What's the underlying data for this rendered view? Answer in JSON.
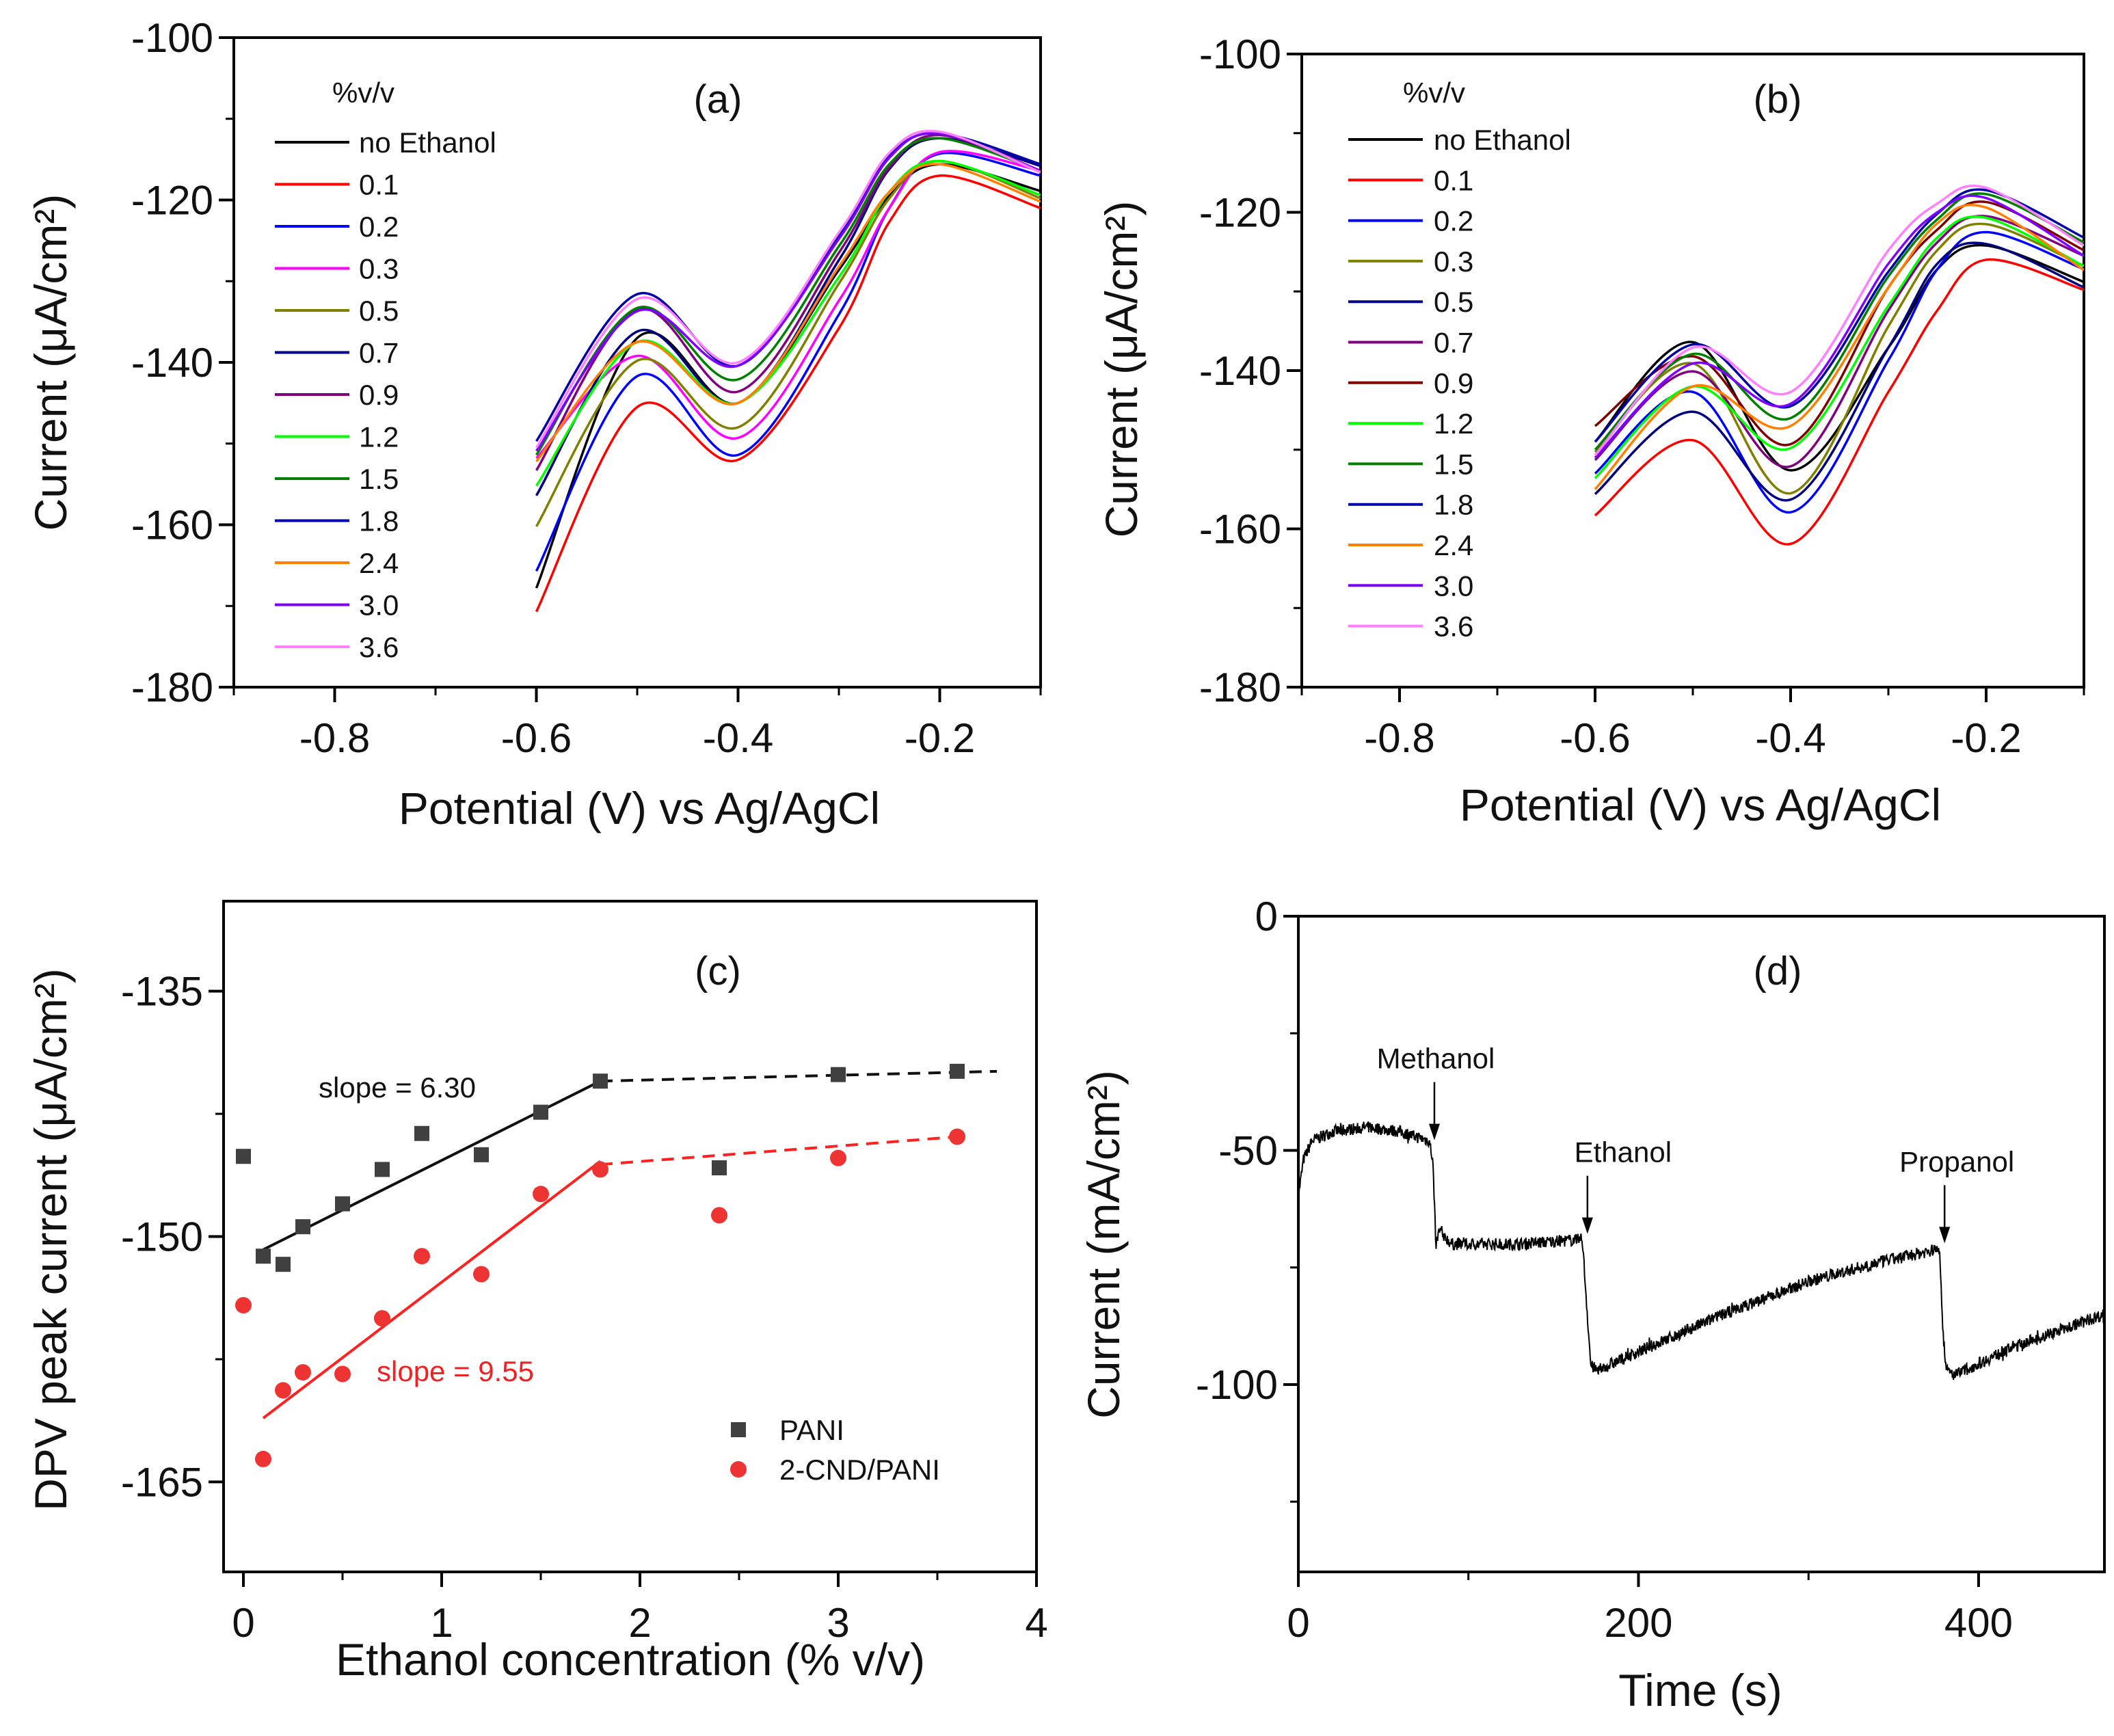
{
  "chart_data": [
    {
      "panel": "(a)",
      "type": "line",
      "xlabel": "Potential (V) vs Ag/AgCl",
      "ylabel": "Current (μA/cm²)",
      "xlim": [
        -0.9,
        -0.1
      ],
      "ylim": [
        -180,
        -100
      ],
      "xticks": [
        -0.8,
        -0.6,
        -0.4,
        -0.2
      ],
      "yticks": [
        -100,
        -120,
        -140,
        -160,
        -180
      ],
      "grid": false,
      "legend_title": "%v/v",
      "legend_position": "top-left",
      "x": [
        -0.6,
        -0.5,
        -0.4,
        -0.3,
        -0.25,
        -0.2,
        -0.1
      ],
      "series": [
        {
          "name": "no Ethanol",
          "color": "#000000",
          "values": [
            -167.8,
            -137.0,
            -145.0,
            -128.6,
            -119.5,
            -115.6,
            -118.9
          ]
        },
        {
          "name": "0.1",
          "color": "#ff0000",
          "values": [
            -170.7,
            -145.5,
            -152.0,
            -135.8,
            -122.7,
            -117.0,
            -121.0
          ]
        },
        {
          "name": "0.2",
          "color": "#0000ff",
          "values": [
            -165.7,
            -141.7,
            -151.4,
            -134.1,
            -121.0,
            -114.3,
            -117.0
          ]
        },
        {
          "name": "0.3",
          "color": "#ff00ff",
          "values": [
            -151.8,
            -139.2,
            -149.3,
            -132.4,
            -121.0,
            -114.1,
            -116.4
          ]
        },
        {
          "name": "0.5",
          "color": "#808000",
          "values": [
            -160.2,
            -139.8,
            -148.0,
            -130.3,
            -119.8,
            -115.2,
            -119.8
          ]
        },
        {
          "name": "0.7",
          "color": "#000080",
          "values": [
            -156.4,
            -136.2,
            -145.0,
            -127.4,
            -116.2,
            -112.4,
            -115.8
          ]
        },
        {
          "name": "0.9",
          "color": "#800080",
          "values": [
            -153.3,
            -133.5,
            -143.6,
            -126.5,
            -116.0,
            -112.0,
            -116.4
          ]
        },
        {
          "name": "1.2",
          "color": "#00ff00",
          "values": [
            -155.2,
            -137.5,
            -145.0,
            -129.5,
            -119.0,
            -115.2,
            -119.4
          ]
        },
        {
          "name": "1.5",
          "color": "#008000",
          "values": [
            -151.4,
            -133.3,
            -142.1,
            -125.7,
            -115.6,
            -112.4,
            -116.4
          ]
        },
        {
          "name": "1.8",
          "color": "#0000a8",
          "values": [
            -149.7,
            -131.6,
            -140.4,
            -124.4,
            -114.6,
            -111.8,
            -115.6
          ]
        },
        {
          "name": "2.4",
          "color": "#ff8000",
          "values": [
            -152.2,
            -137.5,
            -145.0,
            -128.2,
            -119.0,
            -115.6,
            -120.2
          ]
        },
        {
          "name": "3.0",
          "color": "#8000ff",
          "values": [
            -150.9,
            -133.7,
            -140.4,
            -124.8,
            -114.8,
            -111.8,
            -116.4
          ]
        },
        {
          "name": "3.6",
          "color": "#ff80ff",
          "values": [
            -150.5,
            -132.2,
            -140.0,
            -124.0,
            -114.2,
            -111.6,
            -116.6
          ]
        }
      ]
    },
    {
      "panel": "(b)",
      "type": "line",
      "xlabel": "Potential (V) vs Ag/AgCl",
      "ylabel": "Current (μA/cm²)",
      "xlim": [
        -0.9,
        -0.1
      ],
      "ylim": [
        -180,
        -100
      ],
      "xticks": [
        -0.8,
        -0.6,
        -0.4,
        -0.2
      ],
      "yticks": [
        -100,
        -120,
        -140,
        -160,
        -180
      ],
      "grid": false,
      "legend_title": "%v/v",
      "legend_position": "top-left",
      "x": [
        -0.6,
        -0.5,
        -0.4,
        -0.3,
        -0.25,
        -0.2,
        -0.1
      ],
      "series": [
        {
          "name": "no Ethanol",
          "color": "#000000",
          "values": [
            -149.0,
            -136.4,
            -152.6,
            -137.1,
            -127.2,
            -124.2,
            -128.8
          ]
        },
        {
          "name": "0.1",
          "color": "#ff0000",
          "values": [
            -158.3,
            -148.8,
            -161.9,
            -142.7,
            -132.4,
            -126.0,
            -129.8
          ]
        },
        {
          "name": "0.2",
          "color": "#0000ff",
          "values": [
            -153.0,
            -142.7,
            -157.9,
            -138.7,
            -127.2,
            -122.5,
            -127.2
          ]
        },
        {
          "name": "0.3",
          "color": "#808000",
          "values": [
            -150.3,
            -139.1,
            -155.5,
            -134.4,
            -124.8,
            -121.5,
            -126.8
          ]
        },
        {
          "name": "0.5",
          "color": "#000080",
          "values": [
            -155.6,
            -145.2,
            -156.3,
            -137.1,
            -126.5,
            -124.0,
            -129.5
          ]
        },
        {
          "name": "0.7",
          "color": "#800080",
          "values": [
            -151.3,
            -140.1,
            -152.1,
            -132.4,
            -123.8,
            -120.5,
            -125.5
          ]
        },
        {
          "name": "0.9",
          "color": "#800000",
          "values": [
            -147.0,
            -138.2,
            -149.3,
            -129.5,
            -122.2,
            -118.7,
            -124.8
          ]
        },
        {
          "name": "1.2",
          "color": "#00ff00",
          "values": [
            -153.6,
            -142.0,
            -149.8,
            -131.8,
            -123.2,
            -120.7,
            -126.8
          ]
        },
        {
          "name": "1.5",
          "color": "#008000",
          "values": [
            -150.0,
            -137.9,
            -146.0,
            -128.1,
            -120.9,
            -117.7,
            -123.8
          ]
        },
        {
          "name": "1.8",
          "color": "#0000a8",
          "values": [
            -149.0,
            -136.7,
            -144.5,
            -127.5,
            -120.2,
            -117.2,
            -123.2
          ]
        },
        {
          "name": "2.4",
          "color": "#ff8000",
          "values": [
            -155.0,
            -142.0,
            -147.0,
            -129.5,
            -121.4,
            -119.4,
            -127.3
          ]
        },
        {
          "name": "3.0",
          "color": "#8000ff",
          "values": [
            -151.0,
            -139.1,
            -144.2,
            -126.5,
            -120.0,
            -118.2,
            -125.5
          ]
        },
        {
          "name": "3.6",
          "color": "#ff80ff",
          "values": [
            -150.7,
            -137.1,
            -142.7,
            -124.8,
            -118.9,
            -116.9,
            -124.2
          ]
        }
      ]
    },
    {
      "panel": "(c)",
      "type": "scatter",
      "xlabel": "Ethanol concentration (% v/v)",
      "ylabel": "DPV peak current (μA/cm²)",
      "xlim": [
        -0.1,
        4.0
      ],
      "ylim": [
        -170.5,
        -129.5
      ],
      "xticks": [
        0,
        1,
        2,
        3,
        4
      ],
      "yticks": [
        -135,
        -150,
        -165
      ],
      "grid": false,
      "legend_position": "bottom-right",
      "x": [
        0,
        0.1,
        0.2,
        0.3,
        0.5,
        0.7,
        0.9,
        1.2,
        1.5,
        1.8,
        2.4,
        3.0,
        3.6
      ],
      "series": [
        {
          "name": "PANI",
          "color": "#404040",
          "marker": "square",
          "values": [
            -145.1,
            -151.2,
            -151.7,
            -149.4,
            -148.0,
            -145.9,
            -143.7,
            -145.0,
            -142.4,
            -140.5,
            -145.8,
            -140.1,
            -139.9
          ],
          "fit": {
            "label": "slope = 6.30",
            "solid": [
              [
                0.1,
                -150.8
              ],
              [
                1.8,
                -140.5
              ]
            ],
            "dashed": [
              [
                1.8,
                -140.5
              ],
              [
                3.8,
                -139.9
              ]
            ]
          }
        },
        {
          "name": "2-CND/PANI",
          "color": "#ee3333",
          "marker": "circle",
          "values": [
            -154.2,
            -163.6,
            -159.4,
            -158.3,
            -158.4,
            -155.0,
            -151.2,
            -152.3,
            -147.4,
            -145.9,
            -148.7,
            -145.2,
            -143.9
          ],
          "fit": {
            "label": "slope = 9.55",
            "solid": [
              [
                0.1,
                -161.1
              ],
              [
                1.8,
                -145.4
              ]
            ],
            "dashed": [
              [
                1.8,
                -145.6
              ],
              [
                3.6,
                -143.9
              ]
            ]
          }
        }
      ]
    },
    {
      "panel": "(d)",
      "type": "line",
      "xlabel": "Time (s)",
      "ylabel": "Current (mA/cm²)",
      "xlim": [
        0,
        474
      ],
      "ylim": [
        -140,
        0
      ],
      "xticks": [
        0,
        200,
        400
      ],
      "yticks": [
        0,
        -50,
        -100
      ],
      "grid": false,
      "series": [
        {
          "color": "#000000",
          "noisy": true,
          "x": [
            0,
            3,
            8,
            20,
            40,
            60,
            77,
            79,
            81,
            83,
            90,
            130,
            167,
            169,
            172,
            176,
            200,
            250,
            300,
            340,
            377,
            379,
            381,
            386,
            420,
            474
          ],
          "values": [
            -60,
            -52,
            -48,
            -46,
            -45,
            -46,
            -48,
            -52,
            -70,
            -67,
            -70,
            -70,
            -69,
            -80,
            -96,
            -97,
            -93,
            -85,
            -78,
            -74,
            -71,
            -88,
            -97,
            -98,
            -92,
            -85
          ]
        }
      ],
      "annotations": [
        {
          "label": "Methanol",
          "x": 80,
          "y": -49
        },
        {
          "label": "Ethanol",
          "x": 170,
          "y": -69
        },
        {
          "label": "Propanol",
          "x": 380,
          "y": -71
        }
      ]
    }
  ]
}
